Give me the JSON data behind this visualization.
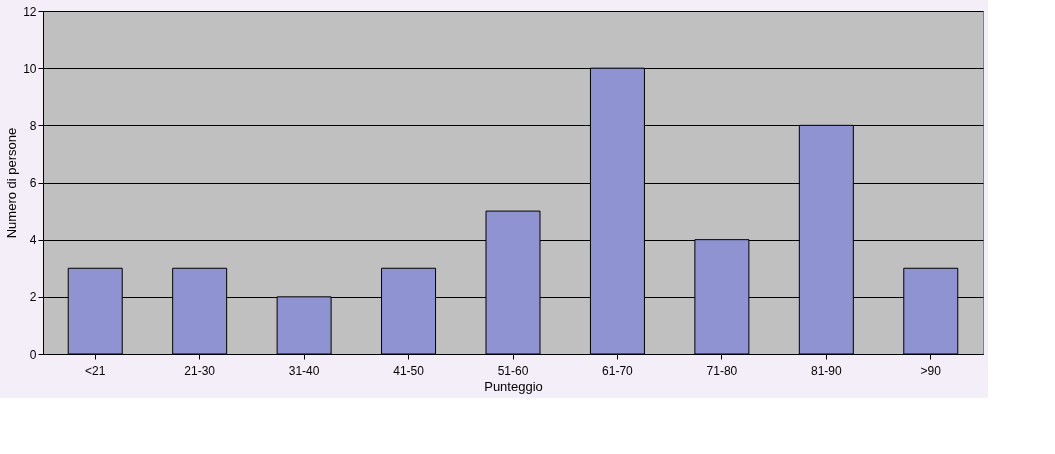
{
  "chart_data": {
    "type": "bar",
    "xlabel": "Punteggio",
    "ylabel": "Numero di persone",
    "categories": [
      "<21",
      "21-30",
      "31-40",
      "41-50",
      "51-60",
      "61-70",
      "71-80",
      "81-90",
      ">90"
    ],
    "values": [
      3,
      3,
      2,
      3,
      5,
      10,
      4,
      8,
      3
    ],
    "color": "#8f93d1",
    "ylim": [
      0,
      12
    ],
    "yticks": [
      0,
      2,
      4,
      6,
      8,
      10,
      12
    ],
    "grid": "y"
  }
}
